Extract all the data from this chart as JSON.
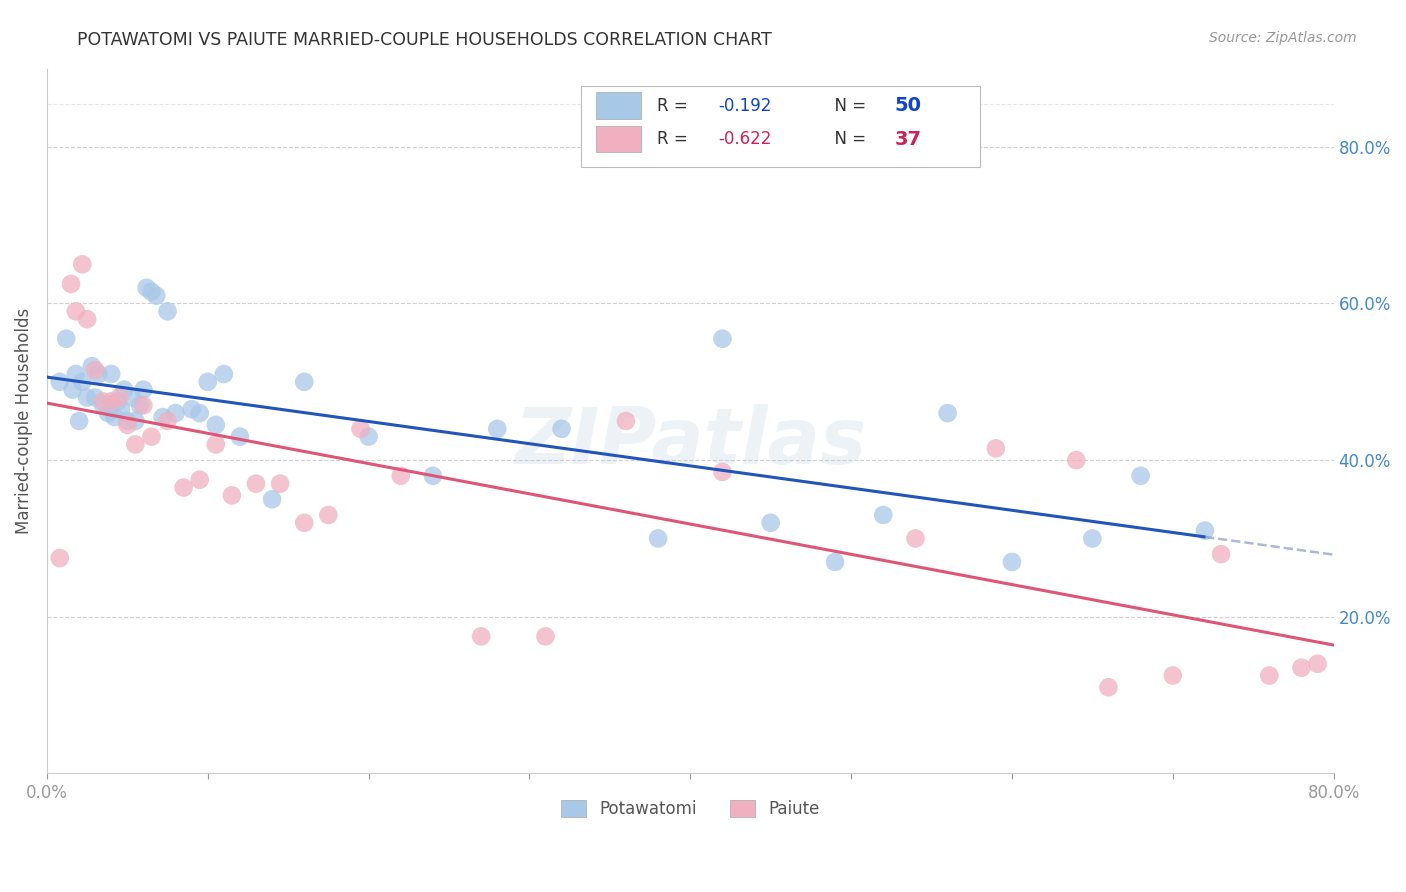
{
  "title": "POTAWATOMI VS PAIUTE MARRIED-COUPLE HOUSEHOLDS CORRELATION CHART",
  "source": "Source: ZipAtlas.com",
  "ylabel": "Married-couple Households",
  "xlim": [
    0.0,
    0.8
  ],
  "ylim": [
    0.0,
    0.9
  ],
  "y_tick_positions_right": [
    0.8,
    0.6,
    0.4,
    0.2
  ],
  "y_tick_labels_right": [
    "80.0%",
    "60.0%",
    "40.0%",
    "20.0%"
  ],
  "blue_color": "#a8c8e8",
  "pink_color": "#f0b0c0",
  "blue_line_color": "#2255bb",
  "pink_line_color": "#e05575",
  "blue_dash_color": "#8899cc",
  "blue_r_color": "#1144cc",
  "pink_r_color": "#cc2255",
  "right_tick_color": "#4488cc",
  "background_color": "#ffffff",
  "grid_color": "#cccccc",
  "watermark": "ZIPatlas",
  "bottom_legend_labels": [
    "Potawatomi",
    "Paiute"
  ],
  "potawatomi_x": [
    0.008,
    0.012,
    0.016,
    0.018,
    0.02,
    0.022,
    0.025,
    0.028,
    0.03,
    0.032,
    0.035,
    0.038,
    0.04,
    0.042,
    0.044,
    0.046,
    0.048,
    0.05,
    0.053,
    0.055,
    0.058,
    0.06,
    0.062,
    0.065,
    0.068,
    0.072,
    0.075,
    0.08,
    0.09,
    0.095,
    0.1,
    0.105,
    0.11,
    0.12,
    0.14,
    0.16,
    0.2,
    0.24,
    0.28,
    0.32,
    0.38,
    0.42,
    0.45,
    0.49,
    0.52,
    0.56,
    0.6,
    0.65,
    0.68,
    0.72
  ],
  "potawatomi_y": [
    0.5,
    0.555,
    0.49,
    0.51,
    0.45,
    0.5,
    0.48,
    0.52,
    0.48,
    0.51,
    0.47,
    0.46,
    0.51,
    0.455,
    0.475,
    0.465,
    0.49,
    0.45,
    0.48,
    0.45,
    0.47,
    0.49,
    0.62,
    0.615,
    0.61,
    0.455,
    0.59,
    0.46,
    0.465,
    0.46,
    0.5,
    0.445,
    0.51,
    0.43,
    0.35,
    0.5,
    0.43,
    0.38,
    0.44,
    0.44,
    0.3,
    0.555,
    0.32,
    0.27,
    0.33,
    0.46,
    0.27,
    0.3,
    0.38,
    0.31
  ],
  "paiute_x": [
    0.008,
    0.015,
    0.018,
    0.022,
    0.025,
    0.03,
    0.035,
    0.04,
    0.045,
    0.05,
    0.055,
    0.06,
    0.065,
    0.075,
    0.085,
    0.095,
    0.105,
    0.115,
    0.13,
    0.145,
    0.16,
    0.175,
    0.195,
    0.22,
    0.27,
    0.31,
    0.36,
    0.42,
    0.54,
    0.59,
    0.64,
    0.66,
    0.7,
    0.73,
    0.76,
    0.78,
    0.79
  ],
  "paiute_y": [
    0.275,
    0.625,
    0.59,
    0.65,
    0.58,
    0.515,
    0.475,
    0.475,
    0.48,
    0.445,
    0.42,
    0.47,
    0.43,
    0.45,
    0.365,
    0.375,
    0.42,
    0.355,
    0.37,
    0.37,
    0.32,
    0.33,
    0.44,
    0.38,
    0.175,
    0.175,
    0.45,
    0.385,
    0.3,
    0.415,
    0.4,
    0.11,
    0.125,
    0.28,
    0.125,
    0.135,
    0.14
  ]
}
